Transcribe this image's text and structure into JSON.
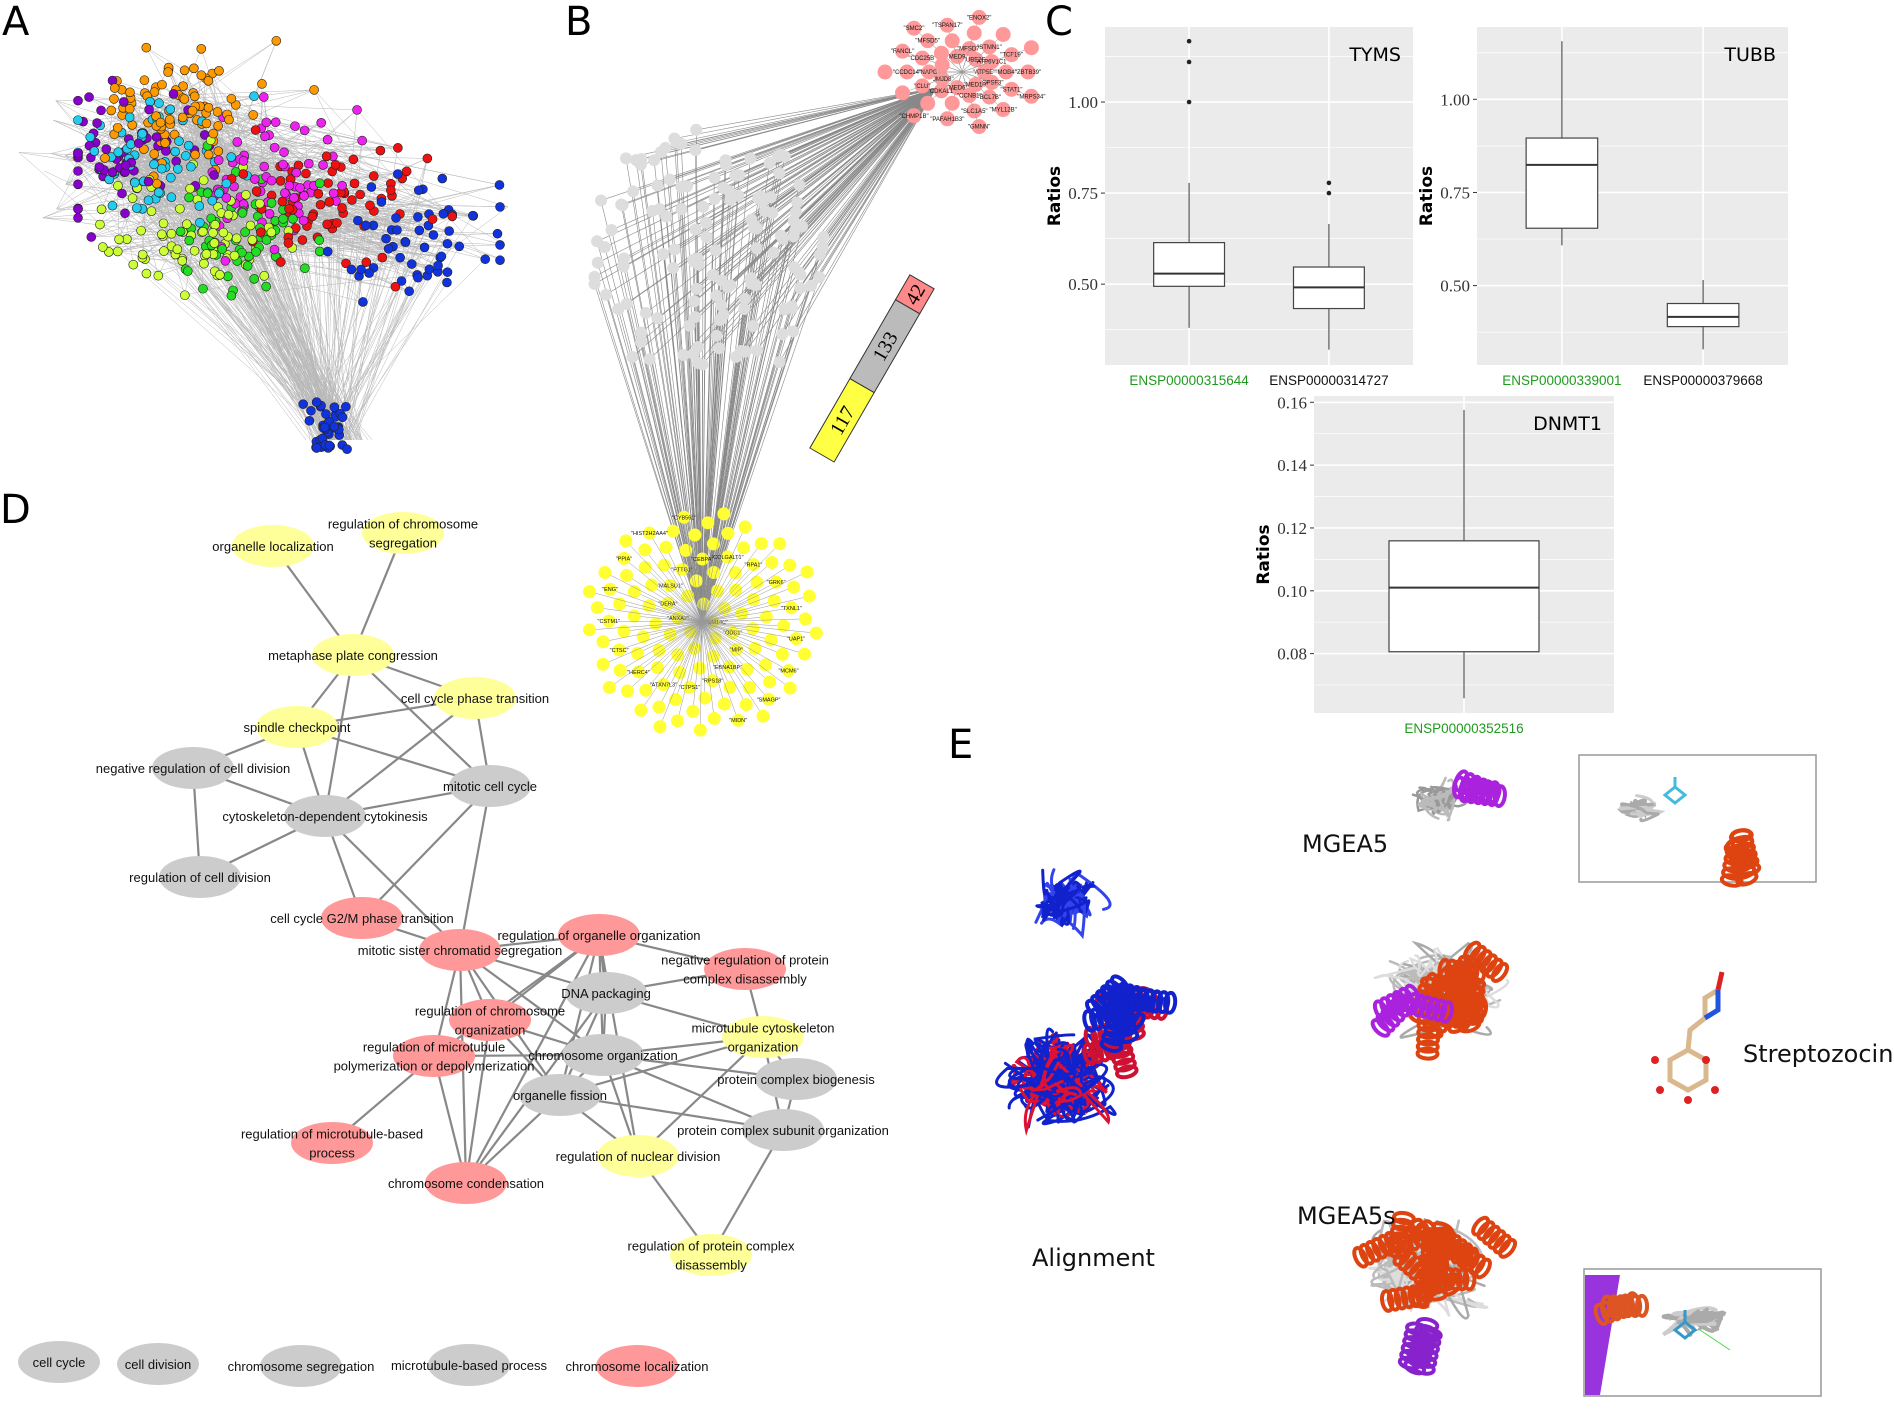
{
  "panels": {
    "a": "A",
    "b": "B",
    "c": "C",
    "d": "D",
    "e": "E"
  },
  "colors": {
    "network_a": [
      "#22dd22",
      "#ee22ee",
      "#ccff33",
      "#1133dd",
      "#ee1111",
      "#ff9900",
      "#22ccee",
      "#8800cc"
    ],
    "red_node": "#ff9999",
    "yellow_node": "#ffff88",
    "gray_node": "#cccccc",
    "green_label": "#1e9a1e",
    "plot_bg": "#ebebeb"
  },
  "panel_b": {
    "stacked_bar": [
      {
        "value": "117",
        "color": "#ffff44"
      },
      {
        "value": "133",
        "color": "#bbbbbb"
      },
      {
        "value": "42",
        "color": "#ff8888"
      }
    ],
    "red_genes": [
      "\"ATP5E\"",
      "\"CPSF3\"",
      "\"BCL7B\"",
      "\"SLC1A5\"",
      "\"PAFAH1B3\"",
      "\"CHMP1B\"",
      "\"JMJD8\"",
      "\"NAPG\"",
      "\"CDC25B\"",
      "\"MFSD5\"",
      "\"TSPAN17\"",
      "\"ENOX2\"",
      "\"UBE2S\"",
      "\"ATP6V1C1\"",
      "\"MOB4\"",
      "\"STAT1\"",
      "\"MYL12B\"",
      "\"GMNN\"",
      "\"MED6\"",
      "\"CDKAL1\"",
      "\"CLU\"",
      "\"CCDC14\"",
      "\"FANCL\"",
      "\"SMC2\"",
      "\"MED9\"",
      "\"MFSD7\"",
      "\"STMN1\"",
      "\"TCF19\"",
      "\"ZBTB39\"",
      "\"MRPS34\"",
      "\"MED10\"",
      "\"CCNB1\""
    ],
    "yellow_genes": [
      "\"TMEM14C\"",
      "\"ANXA2\"",
      "\"ODC1\"",
      "\"DERA\"",
      "\"MIP\"",
      "\"MALSU1\"",
      "\"EBNA1BP2\"",
      "\"PTTG1\"",
      "\"RPS18\"",
      "\"CEBPA\"",
      "\"CTPS1\"",
      "\"COLGALT1\"",
      "\"ATXN7L3\"",
      "\"RPA1\"",
      "\"HERC4\"",
      "\"GRK6\"",
      "\"CTSC\"",
      "\"TXNL1\"",
      "\"CSTM1\"",
      "\"UAP1\"",
      "\"ENG\"",
      "\"MCM6\"",
      "\"PPIA\"",
      "\"SMAGP\"",
      "\"HIST2H2AA4\"",
      "\"MIDN\"",
      "\"CYB561\""
    ]
  },
  "chart_data": [
    {
      "type": "box",
      "title": "TYMS",
      "ylabel": "Ratios",
      "ylim": [
        0.278,
        1.206
      ],
      "yticks": [
        0.5,
        0.75,
        1.0
      ],
      "ytick_labels": [
        "0.50",
        "0.75",
        "1.00"
      ],
      "grid": true,
      "categories": [
        "ENSP00000315644",
        "ENSP00000314727"
      ],
      "category_colors": [
        "#1e9a1e",
        "#111111"
      ],
      "boxes": [
        {
          "whisker_low": 0.38,
          "q1": 0.494,
          "median": 0.529,
          "q3": 0.614,
          "whisker_high": 0.778,
          "outliers": [
            1.0,
            1.11,
            1.167
          ]
        },
        {
          "whisker_low": 0.32,
          "q1": 0.433,
          "median": 0.491,
          "q3": 0.547,
          "whisker_high": 0.665,
          "outliers": [
            0.75,
            0.778
          ]
        }
      ]
    },
    {
      "type": "box",
      "title": "TUBB",
      "ylabel": "Ratios",
      "ylim": [
        0.287,
        1.194
      ],
      "yticks": [
        0.5,
        0.75,
        1.0
      ],
      "ytick_labels": [
        "0.50",
        "0.75",
        "1.00"
      ],
      "grid": true,
      "categories": [
        "ENSP00000339001",
        "ENSP00000379668"
      ],
      "category_colors": [
        "#1e9a1e",
        "#111111"
      ],
      "boxes": [
        {
          "whisker_low": 0.608,
          "q1": 0.654,
          "median": 0.824,
          "q3": 0.896,
          "whisker_high": 1.156,
          "outliers": []
        },
        {
          "whisker_low": 0.329,
          "q1": 0.39,
          "median": 0.416,
          "q3": 0.452,
          "whisker_high": 0.515,
          "outliers": []
        }
      ]
    },
    {
      "type": "box",
      "title": "DNMT1",
      "ylabel": "Ratios",
      "ylim": [
        0.0611,
        0.162
      ],
      "yticks": [
        0.08,
        0.1,
        0.12,
        0.14,
        0.16
      ],
      "ytick_labels": [
        "0.08",
        "0.10",
        "0.12",
        "0.14",
        "0.16"
      ],
      "grid": true,
      "categories": [
        "ENSP00000352516"
      ],
      "category_colors": [
        "#1e9a1e"
      ],
      "boxes": [
        {
          "whisker_low": 0.0658,
          "q1": 0.0806,
          "median": 0.101,
          "q3": 0.1159,
          "whisker_high": 0.1576,
          "outliers": []
        }
      ]
    }
  ],
  "panel_d": {
    "nodes": [
      {
        "label": "organelle localization",
        "color": "yellow"
      },
      {
        "label": "regulation of chromosome\nsegregation",
        "color": "yellow"
      },
      {
        "label": "metaphase plate congression",
        "color": "yellow"
      },
      {
        "label": "cell cycle phase transition",
        "color": "yellow"
      },
      {
        "label": "spindle checkpoint",
        "color": "yellow"
      },
      {
        "label": "negative regulation of cell division",
        "color": "gray"
      },
      {
        "label": "mitotic cell cycle",
        "color": "gray"
      },
      {
        "label": "cytoskeleton-dependent cytokinesis",
        "color": "gray"
      },
      {
        "label": "regulation of cell division",
        "color": "gray"
      },
      {
        "label": "cell cycle G2/M phase transition",
        "color": "red"
      },
      {
        "label": "mitotic sister chromatid segregation",
        "color": "red"
      },
      {
        "label": "regulation of organelle organization",
        "color": "red"
      },
      {
        "label": "negative regulation of protein\ncomplex disassembly",
        "color": "red"
      },
      {
        "label": "DNA packaging",
        "color": "gray"
      },
      {
        "label": "regulation of chromosome\norganization",
        "color": "red"
      },
      {
        "label": "microtubule cytoskeleton\norganization",
        "color": "yellow"
      },
      {
        "label": "regulation of microtubule\npolymerization or depolymerization",
        "color": "red"
      },
      {
        "label": "chromosome organization",
        "color": "gray"
      },
      {
        "label": "protein complex biogenesis",
        "color": "gray"
      },
      {
        "label": "organelle fission",
        "color": "gray"
      },
      {
        "label": "protein complex subunit organization",
        "color": "gray"
      },
      {
        "label": "regulation of microtubule-based\nprocess",
        "color": "red"
      },
      {
        "label": "regulation of nuclear division",
        "color": "yellow"
      },
      {
        "label": "chromosome condensation",
        "color": "red"
      },
      {
        "label": "regulation of protein complex\ndisassembly",
        "color": "yellow"
      }
    ],
    "edges": [
      [
        0,
        2
      ],
      [
        1,
        2
      ],
      [
        2,
        4
      ],
      [
        2,
        3
      ],
      [
        2,
        7
      ],
      [
        2,
        6
      ],
      [
        3,
        4
      ],
      [
        3,
        7
      ],
      [
        3,
        6
      ],
      [
        4,
        5
      ],
      [
        4,
        7
      ],
      [
        4,
        6
      ],
      [
        5,
        7
      ],
      [
        5,
        8
      ],
      [
        7,
        8
      ],
      [
        7,
        6
      ],
      [
        7,
        9
      ],
      [
        7,
        10
      ],
      [
        6,
        9
      ],
      [
        6,
        10
      ],
      [
        9,
        10
      ],
      [
        10,
        11
      ],
      [
        10,
        13
      ],
      [
        10,
        14
      ],
      [
        10,
        16
      ],
      [
        10,
        19
      ],
      [
        10,
        23
      ],
      [
        10,
        17
      ],
      [
        11,
        12
      ],
      [
        11,
        13
      ],
      [
        11,
        14
      ],
      [
        11,
        16
      ],
      [
        11,
        17
      ],
      [
        11,
        19
      ],
      [
        11,
        23
      ],
      [
        11,
        22
      ],
      [
        12,
        13
      ],
      [
        12,
        15
      ],
      [
        13,
        15
      ],
      [
        13,
        17
      ],
      [
        13,
        19
      ],
      [
        13,
        23
      ],
      [
        14,
        17
      ],
      [
        14,
        19
      ],
      [
        16,
        17
      ],
      [
        16,
        21
      ],
      [
        16,
        23
      ],
      [
        17,
        15
      ],
      [
        17,
        18
      ],
      [
        17,
        20
      ],
      [
        17,
        22
      ],
      [
        17,
        19
      ],
      [
        19,
        20
      ],
      [
        19,
        22
      ],
      [
        19,
        15
      ],
      [
        15,
        18
      ],
      [
        15,
        22
      ],
      [
        15,
        20
      ],
      [
        18,
        20
      ],
      [
        20,
        24
      ],
      [
        22,
        24
      ],
      [
        14,
        23
      ],
      [
        19,
        23
      ]
    ],
    "singletons": [
      {
        "label": "cell cycle",
        "color": "gray"
      },
      {
        "label": "cell division",
        "color": "gray"
      },
      {
        "label": "chromosome segregation",
        "color": "gray"
      },
      {
        "label": "microtubule-based process",
        "color": "gray"
      },
      {
        "label": "chromosome localization",
        "color": "red"
      }
    ]
  },
  "panel_e": {
    "alignment_label": "Alignment",
    "mgea5_label": "MGEA5",
    "mgea5s_label": "MGEA5s",
    "ligand_label": "Streptozocin"
  }
}
